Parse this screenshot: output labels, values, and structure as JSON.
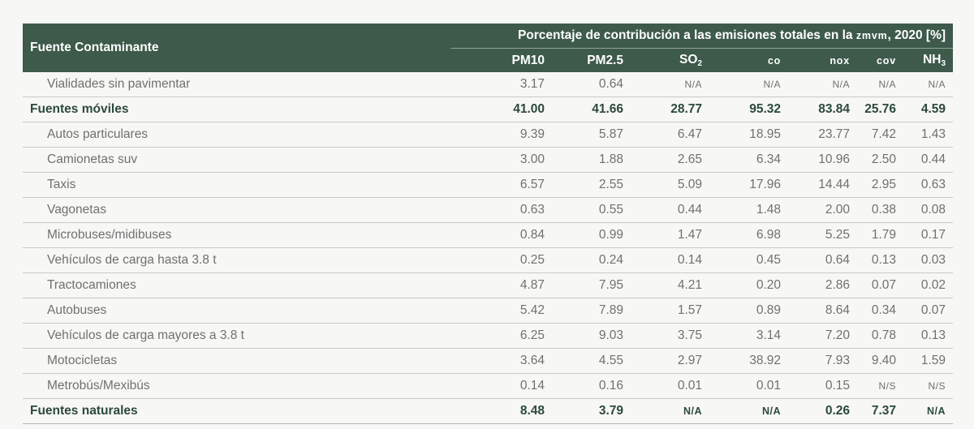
{
  "header": {
    "source_label": "Fuente Contaminante",
    "group_title": "Porcentaje de contribución a las emisiones totales en la zmvm, 2020 [%]",
    "columns": [
      {
        "base": "PM10",
        "sub": ""
      },
      {
        "base": "PM2.5",
        "sub": ""
      },
      {
        "base": "SO",
        "sub": "2"
      },
      {
        "base": "co",
        "sub": ""
      },
      {
        "base": "nox",
        "sub": ""
      },
      {
        "base": "cov",
        "sub": ""
      },
      {
        "base": "NH",
        "sub": "3"
      }
    ]
  },
  "rows": [
    {
      "name": "Vialidades sin pavimentar",
      "type": "item",
      "values": [
        "3.17",
        "0.64",
        "N/A",
        "N/A",
        "N/A",
        "N/A",
        "N/A"
      ]
    },
    {
      "name": "Fuentes móviles",
      "type": "total",
      "values": [
        "41.00",
        "41.66",
        "28.77",
        "95.32",
        "83.84",
        "25.76",
        "4.59"
      ]
    },
    {
      "name": "Autos particulares",
      "type": "item",
      "values": [
        "9.39",
        "5.87",
        "6.47",
        "18.95",
        "23.77",
        "7.42",
        "1.43"
      ]
    },
    {
      "name": "Camionetas suv",
      "type": "item",
      "values": [
        "3.00",
        "1.88",
        "2.65",
        "6.34",
        "10.96",
        "2.50",
        "0.44"
      ]
    },
    {
      "name": "Taxis",
      "type": "item",
      "values": [
        "6.57",
        "2.55",
        "5.09",
        "17.96",
        "14.44",
        "2.95",
        "0.63"
      ]
    },
    {
      "name": "Vagonetas",
      "type": "item",
      "values": [
        "0.63",
        "0.55",
        "0.44",
        "1.48",
        "2.00",
        "0.38",
        "0.08"
      ]
    },
    {
      "name": "Microbuses/midibuses",
      "type": "item",
      "values": [
        "0.84",
        "0.99",
        "1.47",
        "6.98",
        "5.25",
        "1.79",
        "0.17"
      ]
    },
    {
      "name": "Vehículos de carga hasta 3.8 t",
      "type": "item",
      "values": [
        "0.25",
        "0.24",
        "0.14",
        "0.45",
        "0.64",
        "0.13",
        "0.03"
      ]
    },
    {
      "name": "Tractocamiones",
      "type": "item",
      "values": [
        "4.87",
        "7.95",
        "4.21",
        "0.20",
        "2.86",
        "0.07",
        "0.02"
      ]
    },
    {
      "name": "Autobuses",
      "type": "item",
      "values": [
        "5.42",
        "7.89",
        "1.57",
        "0.89",
        "8.64",
        "0.34",
        "0.07"
      ]
    },
    {
      "name": "Vehículos de carga mayores a 3.8 t",
      "type": "item",
      "values": [
        "6.25",
        "9.03",
        "3.75",
        "3.14",
        "7.20",
        "0.78",
        "0.13"
      ]
    },
    {
      "name": "Motocicletas",
      "type": "item",
      "values": [
        "3.64",
        "4.55",
        "2.97",
        "38.92",
        "7.93",
        "9.40",
        "1.59"
      ]
    },
    {
      "name": "Metrobús/Mexibús",
      "type": "item",
      "values": [
        "0.14",
        "0.16",
        "0.01",
        "0.01",
        "0.15",
        "N/S",
        "N/S"
      ]
    },
    {
      "name": "Fuentes naturales",
      "type": "total",
      "values": [
        "8.48",
        "3.79",
        "N/A",
        "N/A",
        "0.26",
        "7.37",
        "N/A"
      ]
    }
  ]
}
